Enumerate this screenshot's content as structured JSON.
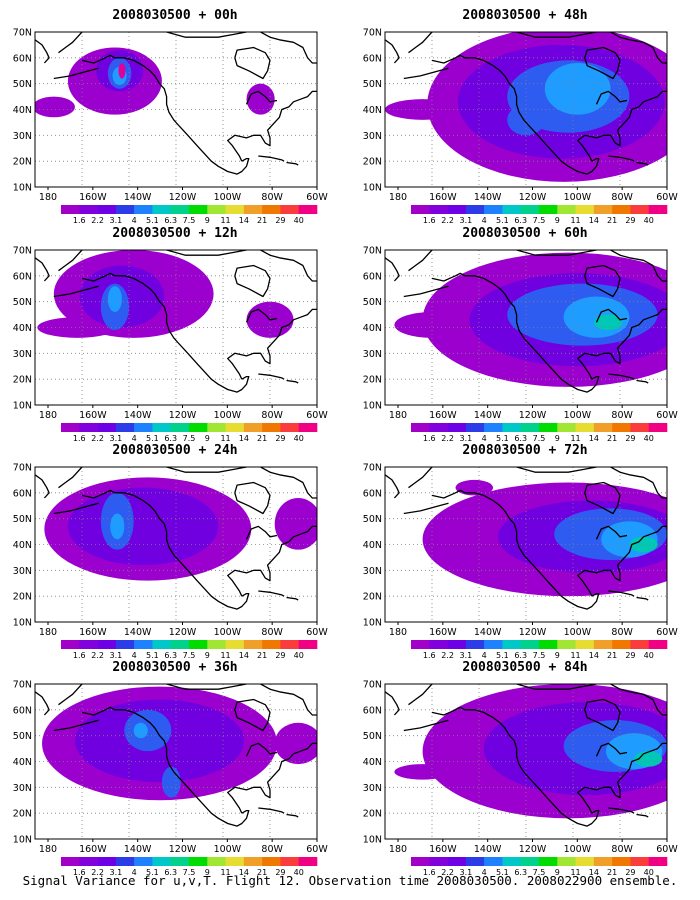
{
  "colors": {
    "background": "#ffffff",
    "land_outline": "#000000",
    "grid_dots": "#808080"
  },
  "axes": {
    "x_ticks": [
      "180",
      "160W",
      "140W",
      "120W",
      "100W",
      "80W",
      "60W"
    ],
    "y_ticks": [
      "10N",
      "20N",
      "30N",
      "40N",
      "50N",
      "60N",
      "70N"
    ]
  },
  "colorbar": {
    "labels": [
      "1.6",
      "2.2",
      "3.1",
      "4",
      "5.1",
      "6.3",
      "7.5",
      "9",
      "11",
      "14",
      "21",
      "29",
      "40"
    ],
    "colors": [
      "#a000c8",
      "#8200dc",
      "#6e00e6",
      "#2c3ce6",
      "#1e82ff",
      "#00c8c8",
      "#00d28c",
      "#00dc00",
      "#a0e632",
      "#e6dc32",
      "#f0a028",
      "#f07800",
      "#fa3c3c",
      "#f00082"
    ]
  },
  "panels": [
    {
      "title": "2008030500 + 00h"
    },
    {
      "title": "2008030500 + 48h"
    },
    {
      "title": "2008030500 + 12h"
    },
    {
      "title": "2008030500 + 60h"
    },
    {
      "title": "2008030500 + 24h"
    },
    {
      "title": "2008030500 + 72h"
    },
    {
      "title": "2008030500 + 36h"
    },
    {
      "title": "2008030500 + 84h"
    }
  ],
  "caption": "Signal Variance for u,v,T. Flight 12. Observation time 2008030500. 2008022900 ensemble."
}
